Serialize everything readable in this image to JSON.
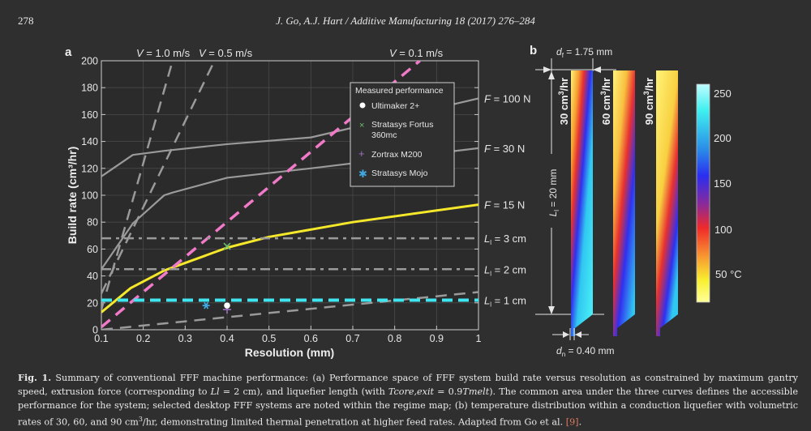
{
  "header": {
    "page_number": "278",
    "journal": "J. Go, A.J. Hart / Additive Manufacturing 18 (2017) 276–284"
  },
  "panel_a": {
    "label": "a",
    "speed_labels": [
      {
        "prefix": "V",
        "text": " = 1.0 m/s"
      },
      {
        "prefix": "V",
        "text": " = 0.5 m/s"
      },
      {
        "prefix": "V",
        "text": " = 0.1 m/s"
      }
    ],
    "right_labels": [
      {
        "italic": "F",
        "text": " = 100 N",
        "y": 172
      },
      {
        "italic": "F",
        "text": " = 30 N",
        "y": 135
      },
      {
        "italic": "F",
        "text": " = 15 N",
        "y": 93
      },
      {
        "italic": "L",
        "sub": "l",
        "text": " = 3 cm",
        "y": 68
      },
      {
        "italic": "L",
        "sub": "l",
        "text": " = 2 cm",
        "y": 45
      },
      {
        "italic": "L",
        "sub": "l",
        "text": " = 1 cm",
        "y": 22
      }
    ],
    "legend": {
      "title": "Measured performance",
      "items": [
        {
          "label": "Ultimaker 2+",
          "marker": "circle",
          "color": "#ffffff"
        },
        {
          "label": "Stratasys Fortus",
          "label2": "360mc",
          "marker": "x",
          "color": "#6fbf6f"
        },
        {
          "label": "Zortrax M200",
          "marker": "plus",
          "color": "#a070c0"
        },
        {
          "label": "Stratasys Mojo",
          "marker": "asterisk",
          "color": "#3fa8e0"
        }
      ]
    }
  },
  "chart_data": {
    "type": "line",
    "title": "",
    "xlabel": "Resolution (mm)",
    "ylabel": "Build rate (cm³/hr)",
    "xlim": [
      0.1,
      1
    ],
    "ylim": [
      0,
      200
    ],
    "xticks": [
      "0.1",
      "0.2",
      "0.3",
      "0.4",
      "0.5",
      "0.6",
      "0.7",
      "0.8",
      "0.9",
      "1"
    ],
    "yticks": [
      "0",
      "20",
      "40",
      "60",
      "80",
      "100",
      "120",
      "140",
      "160",
      "180",
      "200"
    ],
    "grid": true,
    "series": [
      {
        "name": "F = 100 N",
        "style": "solid",
        "color": "#9a9a9a",
        "x": [
          0.1,
          0.175,
          0.25,
          0.4,
          0.6,
          1.0
        ],
        "y": [
          114,
          130,
          133,
          138,
          143,
          172
        ]
      },
      {
        "name": "F = 30 N",
        "style": "solid",
        "color": "#9a9a9a",
        "x": [
          0.1,
          0.175,
          0.25,
          0.27,
          0.4,
          0.6,
          1.0
        ],
        "y": [
          45,
          79,
          100,
          102,
          113,
          120,
          135
        ]
      },
      {
        "name": "F = 15 N",
        "style": "solid",
        "color": "#f5e82a",
        "x": [
          0.1,
          0.17,
          0.25,
          0.4,
          0.5,
          0.7,
          1.0
        ],
        "y": [
          13,
          31,
          44,
          61,
          69,
          80,
          93
        ]
      },
      {
        "name": "V = 1.0 m/s",
        "style": "dashed",
        "color": "#9a9a9a",
        "x": [
          0.1,
          0.27
        ],
        "y": [
          15,
          200
        ]
      },
      {
        "name": "V = 0.5 m/s",
        "style": "dashed",
        "color": "#9a9a9a",
        "x": [
          0.1,
          0.37
        ],
        "y": [
          27,
          200
        ]
      },
      {
        "name": "V = 0.1 m/s",
        "style": "dashed",
        "color": "#f07ac8",
        "x": [
          0.1,
          0.86
        ],
        "y": [
          2,
          200
        ]
      },
      {
        "name": "V lower bound",
        "style": "dashed",
        "color": "#9a9a9a",
        "x": [
          0.1,
          1.0
        ],
        "y": [
          0,
          28
        ]
      },
      {
        "name": "Ll = 3 cm",
        "style": "dashdot",
        "color": "#9a9a9a",
        "x": [
          0.1,
          1.0
        ],
        "y": [
          68,
          68
        ]
      },
      {
        "name": "Ll = 2 cm",
        "style": "dashdot",
        "color": "#9a9a9a",
        "x": [
          0.1,
          1.0
        ],
        "y": [
          45,
          45
        ]
      },
      {
        "name": "Ll = 1 cm",
        "style": "dashed",
        "color": "#3fe6ef",
        "x": [
          0.1,
          1.0
        ],
        "y": [
          22,
          22
        ]
      }
    ],
    "points": [
      {
        "name": "Ultimaker 2+",
        "x": 0.4,
        "y": 18
      },
      {
        "name": "Stratasys Fortus 360mc",
        "x": 0.4,
        "y": 62
      },
      {
        "name": "Zortrax M200",
        "x": 0.4,
        "y": 15
      },
      {
        "name": "Stratasys Mojo",
        "x": 0.35,
        "y": 18
      }
    ]
  },
  "panel_b": {
    "label": "b",
    "df_italic": "d",
    "df_sub": "f",
    "df_text": " = 1.75 mm",
    "dn_italic": "d",
    "dn_sub": "n",
    "dn_text": " = 0.40 mm",
    "ll_italic": "L",
    "ll_sub": "l",
    "ll_text": " = 20 mm",
    "rates": [
      {
        "value": "30 cm",
        "sup": "3",
        "unit": "/hr"
      },
      {
        "value": "60 cm",
        "sup": "3",
        "unit": "/hr"
      },
      {
        "value": "90 cm",
        "sup": "3",
        "unit": "/hr"
      }
    ],
    "colorbar_ticks": [
      "250",
      "200",
      "150",
      "100",
      "50 °C"
    ]
  },
  "caption": {
    "fig_label": "Fig. 1.",
    "part1": " Summary of conventional FFF machine performance: (a) Performance space of FFF system build rate versus resolution as constrained by maximum gantry speed, extrusion force (corresponding to ",
    "ll_italic": "Ll",
    "part2": " = 2 cm), and liquefier length (with ",
    "tcore_italic": "Tcore,exit",
    "part3": " = 0.9",
    "tmelt_italic": "Tmelt",
    "part4": "). The common area under the three curves defines the accessible performance for the system; selected desktop FFF systems are noted within the regime map; (b) temperature distribution within a conduction liquefier with volumetric rates of 30, 60, and 90 cm",
    "sup3": "3",
    "part5": "/hr, demonstrating limited thermal penetration at higher feed rates. Adapted from Go et al. ",
    "ref": "[9]",
    "end": "."
  }
}
